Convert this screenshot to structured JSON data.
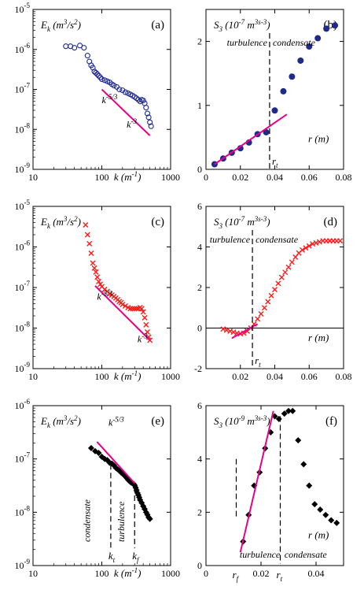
{
  "colors": {
    "blue": "#1f2a8c",
    "red": "#ff1a1a",
    "black": "#000000",
    "magenta": "#e6008a"
  },
  "chart_data": [
    {
      "id": "a",
      "panel_label": "(a)",
      "type": "scatter",
      "ylabel": "E_k (m^3/s^2)",
      "xlabel": "k (m^-1)",
      "xscale": "log",
      "yscale": "log",
      "xlim": [
        10,
        1000
      ],
      "ylim": [
        1e-09,
        1e-05
      ],
      "xticks": [
        "10",
        "100",
        "1000"
      ],
      "yticks": [
        "10^-9",
        "10^-8",
        "10^-7",
        "10^-6",
        "10^-5"
      ],
      "annotations": [
        "k^-5/3",
        "k^-3"
      ],
      "series": [
        {
          "marker": "circle-open",
          "color": "blue",
          "x": [
            30,
            35,
            40,
            48,
            55,
            62,
            66,
            70,
            74,
            78,
            82,
            86,
            90,
            95,
            100,
            110,
            120,
            130,
            140,
            150,
            165,
            180,
            200,
            220,
            240,
            260,
            280,
            300,
            320,
            340,
            360,
            380,
            400,
            420,
            440,
            460,
            480,
            500,
            520
          ],
          "y": [
            1.2e-06,
            1.2e-06,
            1.1e-06,
            1.25e-06,
            1.1e-06,
            7e-07,
            5e-07,
            4e-07,
            3.5e-07,
            2.8e-07,
            2.6e-07,
            2.4e-07,
            2.2e-07,
            2e-07,
            1.8e-07,
            1.7e-07,
            1.6e-07,
            1.5e-07,
            1.35e-07,
            1.25e-07,
            1.15e-07,
            1e-07,
            9.5e-08,
            8.5e-08,
            8e-08,
            7.5e-08,
            7e-08,
            6.5e-08,
            6e-08,
            5.5e-08,
            5e-08,
            5.5e-08,
            5.3e-08,
            4.5e-08,
            3.5e-08,
            2.5e-08,
            2e-08,
            1.5e-08,
            1.2e-08
          ]
        },
        {
          "marker": "line",
          "color": "magenta",
          "x": [
            100,
            500
          ],
          "y": [
            1e-07,
            7e-09
          ]
        }
      ]
    },
    {
      "id": "b",
      "panel_label": "(b)",
      "type": "scatter",
      "ylabel": "S_3 (10^-7 m^3s^-3)",
      "xlabel": "r (m)",
      "xlim": [
        0,
        0.08
      ],
      "ylim": [
        0,
        2.5
      ],
      "xticks": [
        "0",
        "0.02",
        "0.04",
        "0.06",
        "0.08"
      ],
      "yticks": [
        "0",
        "1",
        "2"
      ],
      "regions": [
        "turbulence",
        "condensate"
      ],
      "marker_label": "r_t",
      "marker_x": 0.037,
      "series": [
        {
          "marker": "circle-filled",
          "color": "blue",
          "x": [
            0.005,
            0.01,
            0.015,
            0.02,
            0.025,
            0.03,
            0.035,
            0.04,
            0.045,
            0.05,
            0.055,
            0.06,
            0.065,
            0.07,
            0.075
          ],
          "y": [
            0.08,
            0.17,
            0.26,
            0.33,
            0.42,
            0.55,
            0.58,
            0.92,
            1.22,
            1.45,
            1.7,
            1.92,
            2.05,
            2.2,
            2.25
          ]
        },
        {
          "marker": "line",
          "color": "magenta",
          "x": [
            0.005,
            0.047
          ],
          "y": [
            0.08,
            0.86
          ]
        }
      ]
    },
    {
      "id": "c",
      "panel_label": "(c)",
      "type": "scatter",
      "ylabel": "E_k (m^3/s^2)",
      "xlabel": "k (m^-1)",
      "xscale": "log",
      "yscale": "log",
      "xlim": [
        10,
        1000
      ],
      "ylim": [
        1e-09,
        1e-05
      ],
      "xticks": [
        "10",
        "100",
        "1000"
      ],
      "yticks": [
        "10^-9",
        "10^-8",
        "10^-7",
        "10^-6",
        "10^-5"
      ],
      "annotations": [
        "k^-5/3",
        "k^-3"
      ],
      "series": [
        {
          "marker": "x",
          "color": "red",
          "x": [
            58,
            62,
            66,
            70,
            74,
            78,
            82,
            86,
            90,
            95,
            100,
            110,
            120,
            130,
            140,
            150,
            160,
            170,
            180,
            190,
            200,
            220,
            240,
            260,
            280,
            300,
            320,
            340,
            360,
            380,
            400,
            420,
            440,
            460,
            480,
            500
          ],
          "y": [
            3.5e-06,
            2e-06,
            1.2e-06,
            7e-07,
            4e-07,
            3e-07,
            2.4e-07,
            1.8e-07,
            1.4e-07,
            1.2e-07,
            1.05e-07,
            9e-08,
            8e-08,
            7e-08,
            6.5e-08,
            6e-08,
            5.5e-08,
            5e-08,
            4.5e-08,
            4.2e-08,
            3.8e-08,
            3.5e-08,
            3.2e-08,
            3e-08,
            3e-08,
            3e-08,
            3e-08,
            3e-08,
            3.2e-08,
            3e-08,
            2.5e-08,
            1.8e-08,
            1.2e-08,
            8e-09,
            6e-09,
            5e-09
          ]
        },
        {
          "marker": "line",
          "color": "magenta",
          "x": [
            80,
            500
          ],
          "y": [
            1.1e-07,
            5e-09
          ]
        }
      ]
    },
    {
      "id": "d",
      "panel_label": "(d)",
      "type": "scatter",
      "ylabel": "S_3 (10^-7 m^3s^-3)",
      "xlabel": "r (m)",
      "xlim": [
        0,
        0.08
      ],
      "ylim": [
        -2,
        6
      ],
      "xticks": [
        "0.02",
        "0.04",
        "0.06",
        "0.08"
      ],
      "yticks": [
        "-2",
        "0",
        "2",
        "4",
        "6"
      ],
      "regions": [
        "turbulence",
        "condensate"
      ],
      "marker_label": "r_t",
      "marker_x": 0.027,
      "series": [
        {
          "marker": "x",
          "color": "red",
          "x": [
            0.01,
            0.012,
            0.014,
            0.016,
            0.018,
            0.02,
            0.022,
            0.024,
            0.026,
            0.028,
            0.03,
            0.032,
            0.034,
            0.036,
            0.038,
            0.04,
            0.042,
            0.044,
            0.046,
            0.048,
            0.05,
            0.052,
            0.054,
            0.056,
            0.058,
            0.06,
            0.062,
            0.064,
            0.066,
            0.068,
            0.07,
            0.072,
            0.074,
            0.076,
            0.078
          ],
          "y": [
            -0.05,
            -0.1,
            -0.15,
            -0.2,
            -0.25,
            -0.28,
            -0.25,
            -0.15,
            0.0,
            0.2,
            0.45,
            0.7,
            1.0,
            1.3,
            1.6,
            1.9,
            2.2,
            2.5,
            2.75,
            3.0,
            3.25,
            3.5,
            3.7,
            3.85,
            3.95,
            4.05,
            4.15,
            4.2,
            4.25,
            4.3,
            4.3,
            4.3,
            4.3,
            4.3,
            4.3
          ]
        },
        {
          "marker": "line",
          "color": "magenta",
          "x": [
            0.015,
            0.03
          ],
          "y": [
            -0.5,
            0.2
          ]
        }
      ]
    },
    {
      "id": "e",
      "panel_label": "(e)",
      "type": "scatter",
      "ylabel": "E_k (m^3/s^2)",
      "xlabel": "k (m^-1)",
      "xscale": "log",
      "yscale": "log",
      "xlim": [
        10,
        1000
      ],
      "ylim": [
        1e-09,
        1e-06
      ],
      "xticks": [
        "10",
        "100",
        "1000"
      ],
      "yticks": [
        "10^-9",
        "10^-8",
        "10^-7",
        "10^-6"
      ],
      "annotations": [
        "k^-5/3"
      ],
      "regions": [
        "condensate",
        "turbulence"
      ],
      "marker_labels": [
        "k_t",
        "k_f"
      ],
      "marker_x": [
        135,
        300
      ],
      "series": [
        {
          "marker": "diamond-filled",
          "color": "black",
          "x": [
            70,
            80,
            90,
            100,
            110,
            120,
            130,
            140,
            150,
            160,
            170,
            180,
            190,
            200,
            210,
            220,
            230,
            240,
            250,
            260,
            270,
            280,
            290,
            300,
            310,
            320,
            330,
            340,
            350,
            360,
            380,
            400,
            420,
            440,
            460,
            480,
            500
          ],
          "y": [
            1.6e-07,
            1.4e-07,
            1.3e-07,
            1.1e-07,
            1e-07,
            9.5e-08,
            8.5e-08,
            8.2e-08,
            7.6e-08,
            6.8e-08,
            6.4e-08,
            6e-08,
            5.6e-08,
            5.3e-08,
            5e-08,
            4.7e-08,
            4.4e-08,
            4.1e-08,
            3.9e-08,
            3.7e-08,
            3.6e-08,
            3.5e-08,
            3.4e-08,
            3.2e-08,
            2.9e-08,
            2.6e-08,
            2.3e-08,
            2.1e-08,
            1.9e-08,
            1.7e-08,
            1.5e-08,
            1.3e-08,
            1.15e-08,
            1e-08,
            9e-09,
            8e-09,
            7.5e-09
          ]
        },
        {
          "marker": "line",
          "color": "magenta",
          "x": [
            85,
            300
          ],
          "y": [
            2.1e-07,
            3.5e-08
          ]
        }
      ]
    },
    {
      "id": "f",
      "panel_label": "(f)",
      "type": "scatter",
      "ylabel": "S_3 (10^-9 m^3s^-3)",
      "xlabel": "r (m)",
      "xlim": [
        0,
        0.05
      ],
      "ylim": [
        0,
        6
      ],
      "xticks": [
        "0",
        "0.02",
        "0.04"
      ],
      "yticks": [
        "0",
        "2",
        "4",
        "6"
      ],
      "regions": [
        "turbulence",
        "condensate"
      ],
      "marker_labels": [
        "r_f",
        "r_t"
      ],
      "marker_x": [
        0.011,
        0.027
      ],
      "series": [
        {
          "marker": "diamond-filled",
          "color": "black",
          "x": [
            0.0135,
            0.0155,
            0.0175,
            0.0195,
            0.0215,
            0.0235,
            0.025,
            0.0265,
            0.0285,
            0.03,
            0.0315,
            0.0335,
            0.0355,
            0.0375,
            0.0395,
            0.0415,
            0.0435,
            0.0455,
            0.0475
          ],
          "y": [
            0.9,
            1.9,
            3.0,
            3.5,
            4.4,
            5.0,
            5.6,
            5.5,
            5.7,
            5.8,
            5.8,
            4.7,
            3.8,
            3.0,
            2.3,
            2.1,
            1.9,
            1.7,
            1.6
          ]
        },
        {
          "marker": "line",
          "color": "magenta",
          "x": [
            0.0125,
            0.0245
          ],
          "y": [
            0.5,
            5.8
          ]
        }
      ]
    }
  ]
}
